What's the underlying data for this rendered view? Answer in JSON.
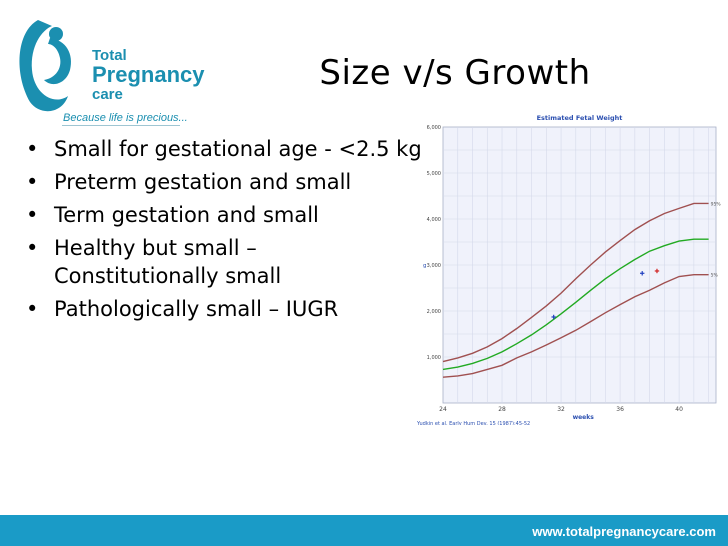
{
  "logo": {
    "line1": "Total",
    "line2": "Pregnancy",
    "line3": "care",
    "tagline": "Because life is precious..."
  },
  "slide": {
    "title": "Size v/s Growth",
    "bullets": [
      "Small for gestational age - <2.5 kg",
      "Preterm gestation and small",
      "Term gestation and small",
      "Healthy but small – Constitutionally small",
      "Pathologically small – IUGR"
    ]
  },
  "footer": {
    "url": "www.totalpregnancycare.com"
  },
  "chart_data": {
    "type": "line",
    "title": "Estimated Fetal Weight",
    "xlabel": "weeks",
    "ylabel": "g",
    "xlim": [
      24,
      42.5
    ],
    "ylim": [
      0,
      6000
    ],
    "xticks": [
      "24",
      "28",
      "32",
      "36",
      "40"
    ],
    "yticks": [
      "1,000",
      "2,000",
      "3,000",
      "4,000",
      "5,000",
      "6,000"
    ],
    "grid": true,
    "citation": "Yudkin et al. Early Hum Dev. 15 (1987):45-52",
    "series": [
      {
        "name": "95%",
        "color": "#a05050",
        "x": [
          24,
          25,
          26,
          27,
          28,
          29,
          30,
          31,
          32,
          33,
          34,
          35,
          36,
          37,
          38,
          39,
          40,
          41,
          42
        ],
        "y": [
          900,
          980,
          1080,
          1220,
          1400,
          1620,
          1860,
          2110,
          2390,
          2700,
          3000,
          3280,
          3530,
          3770,
          3960,
          4120,
          4230,
          4340,
          4340
        ]
      },
      {
        "name": "",
        "color": "#22aa22",
        "x": [
          24,
          25,
          26,
          27,
          28,
          29,
          30,
          31,
          32,
          33,
          34,
          35,
          36,
          37,
          38,
          39,
          40,
          41,
          42
        ],
        "y": [
          730,
          780,
          860,
          970,
          1110,
          1290,
          1480,
          1700,
          1940,
          2190,
          2450,
          2700,
          2920,
          3120,
          3300,
          3420,
          3520,
          3560,
          3560
        ]
      },
      {
        "name": "5%",
        "color": "#a05050",
        "x": [
          24,
          25,
          26,
          27,
          28,
          29,
          30,
          31,
          32,
          33,
          34,
          35,
          36,
          37,
          38,
          39,
          40,
          41,
          42
        ],
        "y": [
          560,
          590,
          640,
          730,
          820,
          980,
          1110,
          1260,
          1420,
          1580,
          1770,
          1960,
          2140,
          2310,
          2450,
          2610,
          2750,
          2790,
          2790
        ]
      }
    ],
    "points": [
      {
        "x": 31.5,
        "y": 1870,
        "color": "#2040c0"
      },
      {
        "x": 37.5,
        "y": 2820,
        "color": "#2040c0"
      },
      {
        "x": 38.5,
        "y": 2870,
        "color": "#d02020"
      }
    ]
  }
}
